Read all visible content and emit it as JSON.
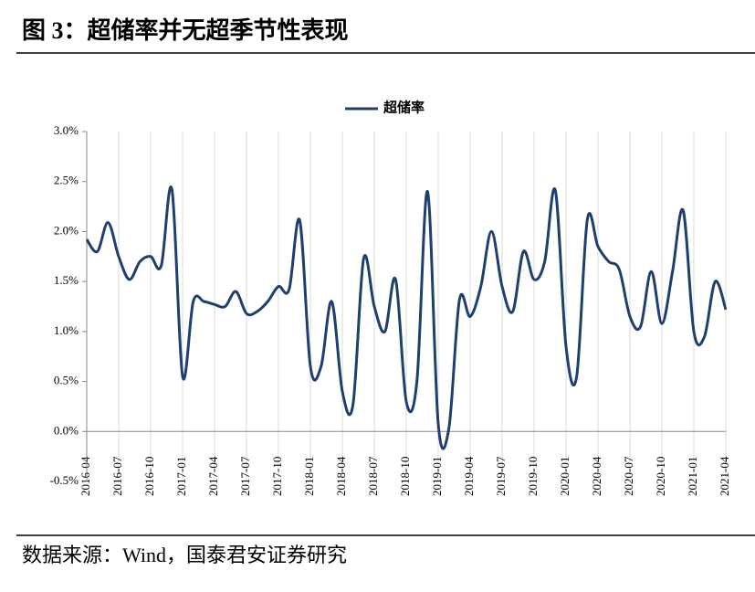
{
  "chart_data": {
    "type": "line",
    "title": "图 3：超储率并无超季节性表现",
    "source": "数据来源：Wind，国泰君安证券研究",
    "categories": [
      "2016-04",
      null,
      null,
      "2016-07",
      null,
      null,
      "2016-10",
      null,
      null,
      "2017-01",
      null,
      null,
      "2017-04",
      null,
      null,
      "2017-07",
      null,
      null,
      "2017-10",
      null,
      null,
      "2018-01",
      null,
      null,
      "2018-04",
      null,
      null,
      "2018-07",
      null,
      null,
      "2018-10",
      null,
      null,
      "2019-01",
      null,
      null,
      "2019-04",
      null,
      null,
      "2019-07",
      null,
      null,
      "2019-10",
      null,
      null,
      "2020-01",
      null,
      null,
      "2020-04",
      null,
      null,
      "2020-07",
      null,
      null,
      "2020-10",
      null,
      null,
      "2021-01",
      null,
      null,
      "2021-04"
    ],
    "series": [
      {
        "name": "超储率",
        "color": "#1f3f6e",
        "values": [
          1.92,
          1.8,
          2.09,
          1.75,
          1.52,
          1.7,
          1.75,
          1.66,
          2.42,
          0.55,
          1.3,
          1.3,
          1.27,
          1.25,
          1.4,
          1.18,
          1.2,
          1.3,
          1.45,
          1.42,
          2.11,
          0.65,
          0.65,
          1.3,
          0.4,
          0.27,
          1.73,
          1.25,
          1.0,
          1.52,
          0.3,
          0.5,
          2.4,
          0.08,
          0.03,
          1.32,
          1.15,
          1.45,
          2.0,
          1.45,
          1.2,
          1.8,
          1.52,
          1.7,
          2.41,
          0.85,
          0.55,
          2.12,
          1.85,
          1.7,
          1.62,
          1.15,
          1.05,
          1.6,
          1.08,
          1.6,
          2.21,
          1.0,
          0.95,
          1.5,
          1.22
        ]
      }
    ],
    "ylim": [
      -0.5,
      3.0
    ],
    "yticks": [
      {
        "value": -0.5,
        "label": "-0.5%"
      },
      {
        "value": 0,
        "label": "0.0%"
      },
      {
        "value": 0.5,
        "label": "0.5%"
      },
      {
        "value": 1,
        "label": "1.0%"
      },
      {
        "value": 1.5,
        "label": "1.5%"
      },
      {
        "value": 2,
        "label": "2.0%"
      },
      {
        "value": 2.5,
        "label": "2.5%"
      },
      {
        "value": 3,
        "label": "3.0%"
      }
    ],
    "legend": "top"
  }
}
